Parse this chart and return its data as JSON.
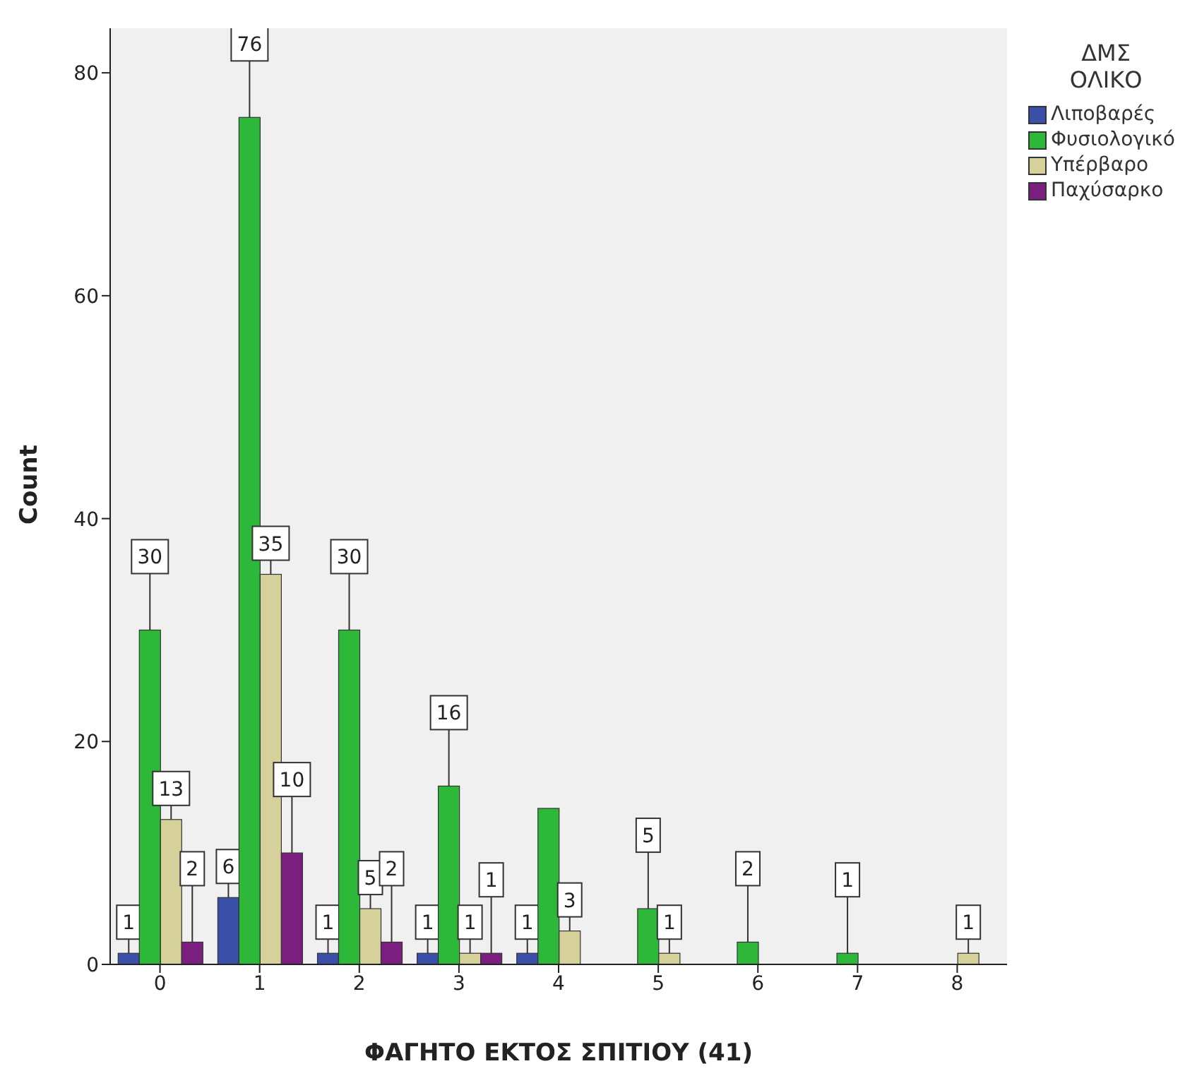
{
  "chart_data": {
    "type": "bar",
    "xlabel": "ΦΑΓΗΤΟ ΕΚΤΟΣ ΣΠΙΤΙΟΥ (41)",
    "ylabel": "Count",
    "legend_title": "ΔΜΣ ΟΛΙΚΟ",
    "categories": [
      "0",
      "1",
      "2",
      "3",
      "4",
      "5",
      "6",
      "7",
      "8"
    ],
    "series": [
      {
        "name": "Λιποβαρές",
        "color": "#3a4fa8",
        "values": [
          1,
          6,
          1,
          1,
          1,
          null,
          null,
          null,
          null
        ],
        "value_labels": [
          "1",
          "6",
          "1",
          "1",
          "1",
          null,
          null,
          null,
          null
        ]
      },
      {
        "name": "Φυσιολογικό",
        "color": "#2eb83a",
        "values": [
          30,
          76,
          30,
          16,
          14,
          5,
          2,
          1,
          null
        ],
        "value_labels": [
          "30",
          "76",
          "30",
          "16",
          null,
          "5",
          "2",
          "1",
          null
        ]
      },
      {
        "name": "Υπέρβαρο",
        "color": "#d6d09a",
        "values": [
          13,
          35,
          5,
          1,
          3,
          1,
          null,
          null,
          1
        ],
        "value_labels": [
          "13",
          "35",
          "5",
          "1",
          "3",
          "1",
          null,
          null,
          "1"
        ]
      },
      {
        "name": "Παχύσαρκο",
        "color": "#7a1f7f",
        "values": [
          2,
          10,
          2,
          1,
          null,
          null,
          null,
          null,
          null
        ],
        "value_labels": [
          "2",
          "10",
          "2",
          "1",
          null,
          null,
          null,
          null,
          null
        ]
      }
    ],
    "ylim": [
      0,
      84
    ],
    "yticks": [
      0,
      20,
      40,
      60,
      80
    ],
    "grid": false,
    "legend": "top right"
  }
}
